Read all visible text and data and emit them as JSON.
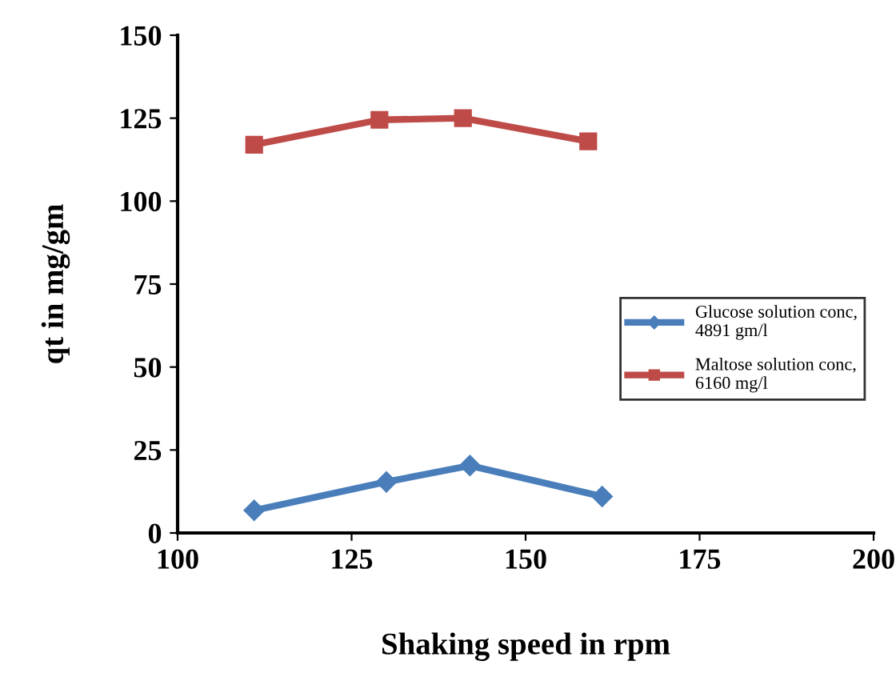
{
  "chart_data": {
    "type": "line",
    "xlabel": "Shaking speed in rpm",
    "ylabel": "qt in mg/gm",
    "xlim": [
      100,
      200
    ],
    "xticks": [
      100,
      125,
      150,
      175,
      200
    ],
    "ylim": [
      0,
      150
    ],
    "yticks": [
      0,
      25,
      50,
      75,
      100,
      125,
      150
    ],
    "grid": false,
    "legend": "right",
    "line_style": "solid",
    "series": [
      {
        "name": "Glucose solution conc,\n4891 gm/l",
        "color": "#4a7ebb",
        "marker": "diamond",
        "x": [
          111,
          130,
          142,
          161
        ],
        "values": [
          6.8,
          15.4,
          20.3,
          11
        ]
      },
      {
        "name": "Maltose solution conc,\n6160 mg/l",
        "color": "#be4b48",
        "marker": "square",
        "x": [
          111,
          129,
          141,
          159
        ],
        "values": [
          117,
          124.5,
          125,
          118
        ]
      }
    ]
  }
}
